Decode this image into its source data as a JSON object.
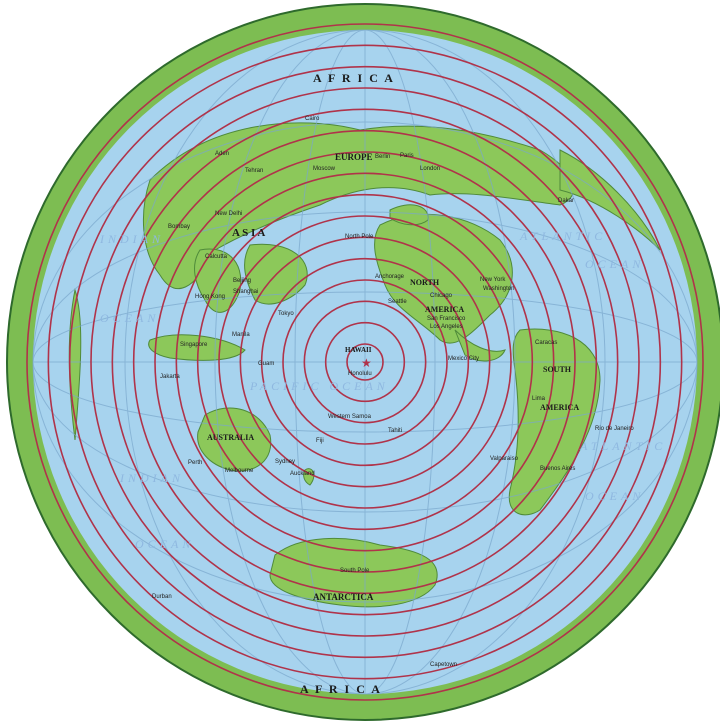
{
  "map": {
    "continents": {
      "africa_top": "A F R I C A",
      "africa_bottom": "A F R I C A",
      "europe": "EUROPE",
      "asia": "A S I A",
      "north_america_1": "NORTH",
      "north_america_2": "AMERICA",
      "south_america_1": "SOUTH",
      "south_america_2": "AMERICA",
      "australia": "AUSTRALIA",
      "antarctica": "ANTARCTICA"
    },
    "center": {
      "hawaii": "HAWAII",
      "honolulu": "Honolulu"
    },
    "oceans": {
      "indian_1": "INDIAN",
      "indian_2": "INDIAN",
      "ocean_left": "OCEAN",
      "ocean_left_2": "OCEAN",
      "atlantic_1": "ATLANTIC",
      "atlantic_2": "ATLANTIC",
      "ocean_right": "OCEAN",
      "ocean_right_2": "OCEAN",
      "pacific": "PACIFIC OCEAN"
    },
    "cities": {
      "cairo": "Cairo",
      "moscow": "Moscow",
      "berlin": "Berlin",
      "paris": "Paris",
      "london": "London",
      "dakar": "Dakar",
      "tehran": "Tehran",
      "aden": "Aden",
      "new_delhi": "New Delhi",
      "bombay": "Bombay",
      "calcutta": "Calcutta",
      "beijing": "Beijing",
      "shanghai": "Shanghai",
      "hong_kong": "Hong Kong",
      "tokyo": "Tokyo",
      "manila": "Manila",
      "singapore": "Singapore",
      "jakarta": "Jakarta",
      "guam": "Guam",
      "north_pole": "North Pole",
      "anchorage": "Anchorage",
      "seattle": "Seattle",
      "chicago": "Chicago",
      "new_york": "New York",
      "washington": "Washington",
      "san_francisco": "San Francisco",
      "los_angeles": "Los Angeles",
      "mexico_city": "Mexico City",
      "caracas": "Caracas",
      "lima": "Lima",
      "rio": "Rio de Janeiro",
      "valparaiso": "Valparaiso",
      "buenos_aires": "Buenos Aires",
      "western_samoa": "Western Samoa",
      "fiji": "Fiji",
      "tahiti": "Tahiti",
      "perth": "Perth",
      "melbourne": "Melbourne",
      "sydney": "Sydney",
      "auckland": "Auckland",
      "south_pole": "South Pole",
      "durban": "Durban",
      "capetown": "Capetown"
    },
    "colors": {
      "land": "#8cc85a",
      "ocean": "#a7d3ee",
      "ring": "#b0334a",
      "outer_band": "#7dbd52",
      "grid": "#7aa7cc"
    },
    "rings": {
      "count": 16,
      "center_marker": "star"
    }
  }
}
